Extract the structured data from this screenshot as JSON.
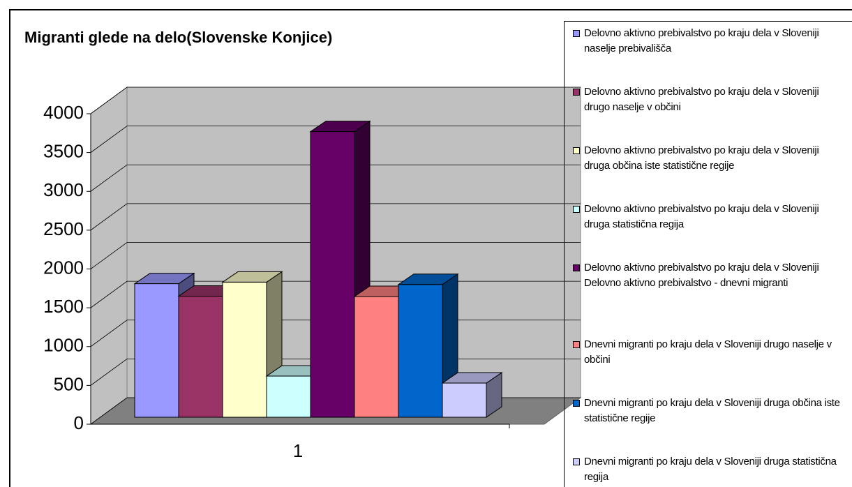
{
  "chart_data": {
    "type": "bar3d",
    "title": "Migranti glede na delo(Slovenske Konjice)",
    "categories": [
      "1"
    ],
    "series": [
      {
        "name": "Delovno aktivno prebivalstvo po kraju dela v Sloveniji naselje prebivališča",
        "color": "#9999ff",
        "values": [
          1720
        ]
      },
      {
        "name": "Delovno aktivno prebivalstvo po kraju dela v Sloveniji drugo naselje v občini",
        "color": "#993366",
        "values": [
          1560
        ]
      },
      {
        "name": "Delovno aktivno prebivalstvo po kraju dela v Sloveniji druga občina iste statistične regije",
        "color": "#ffffcc",
        "values": [
          1740
        ]
      },
      {
        "name": "Delovno aktivno prebivalstvo po kraju dela v Sloveniji druga statistična regija",
        "color": "#ccffff",
        "values": [
          530
        ]
      },
      {
        "name": "Delovno aktivno prebivalstvo po kraju dela v Sloveniji Delovno aktivno prebivalstvo - dnevni migranti",
        "color": "#660066",
        "values": [
          3680
        ]
      },
      {
        "name": "Dnevni migranti po kraju dela v Sloveniji drugo naselje v občini",
        "color": "#ff8080",
        "values": [
          1555
        ]
      },
      {
        "name": "Dnevni migranti po kraju dela v Sloveniji druga občina iste statistične regije",
        "color": "#0066cc",
        "values": [
          1710
        ]
      },
      {
        "name": "Dnevni migranti po kraju dela v Sloveniji druga statistična regija",
        "color": "#ccccff",
        "values": [
          440
        ]
      }
    ],
    "ylim": [
      0,
      4000
    ],
    "yticks": [
      0,
      500,
      1000,
      1500,
      2000,
      2500,
      3000,
      3500,
      4000
    ],
    "grid": true,
    "legend": "right"
  }
}
